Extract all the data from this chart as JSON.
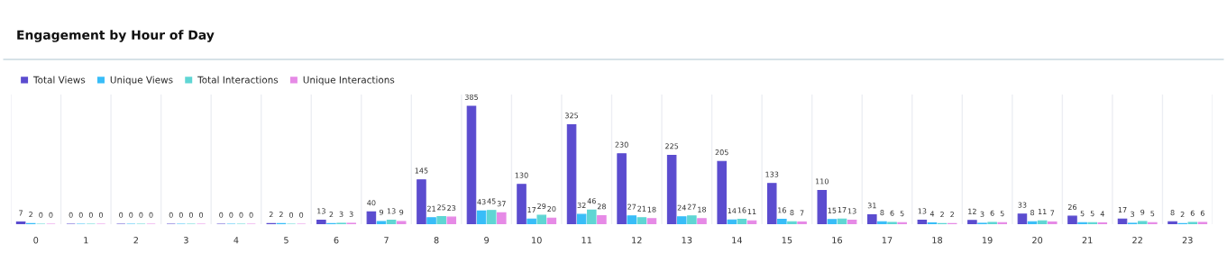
{
  "chart_data": {
    "type": "bar",
    "title": "Engagement by Hour of Day",
    "categories": [
      "0",
      "1",
      "2",
      "3",
      "4",
      "5",
      "6",
      "7",
      "8",
      "9",
      "10",
      "11",
      "12",
      "13",
      "14",
      "15",
      "16",
      "17",
      "18",
      "19",
      "20",
      "21",
      "22",
      "23"
    ],
    "series": [
      {
        "name": "Total Views",
        "color": "#5b4ccf",
        "values": [
          7,
          0,
          0,
          0,
          0,
          2,
          13,
          40,
          145,
          385,
          130,
          325,
          230,
          225,
          205,
          133,
          110,
          31,
          13,
          12,
          33,
          26,
          17,
          8
        ]
      },
      {
        "name": "Unique Views",
        "color": "#38bdf8",
        "values": [
          2,
          0,
          0,
          0,
          0,
          2,
          2,
          9,
          21,
          43,
          17,
          32,
          27,
          24,
          14,
          16,
          15,
          8,
          4,
          3,
          8,
          5,
          3,
          2
        ]
      },
      {
        "name": "Total Interactions",
        "color": "#5fd6d4",
        "values": [
          0,
          0,
          0,
          0,
          0,
          0,
          3,
          13,
          25,
          45,
          29,
          46,
          21,
          27,
          16,
          8,
          17,
          6,
          2,
          6,
          11,
          5,
          9,
          6
        ]
      },
      {
        "name": "Unique Interactions",
        "color": "#e68ae6",
        "values": [
          0,
          0,
          0,
          0,
          0,
          0,
          3,
          9,
          23,
          37,
          20,
          28,
          18,
          18,
          11,
          7,
          13,
          5,
          2,
          5,
          7,
          4,
          5,
          6
        ]
      }
    ],
    "data_labels": true,
    "grid": "x",
    "legend": "top left"
  }
}
